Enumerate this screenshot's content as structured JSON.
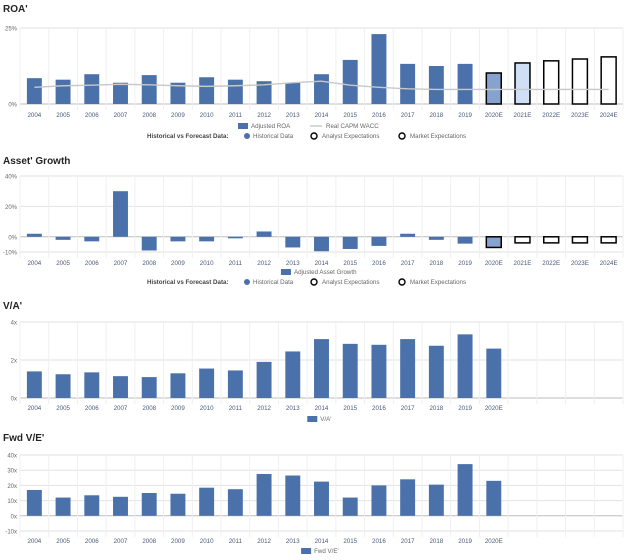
{
  "colors": {
    "historical": "#4a71aa",
    "analyst_fill": "#cfe0f6",
    "wacc_line": "#c8c8c8",
    "grid": "#e2e2e2",
    "text": "#666666"
  },
  "forecast_legend": {
    "heading": "Historical vs Forecast Data:",
    "historical": "Historical Data",
    "analyst": "Analyst Expectations",
    "market": "Market Expectations"
  },
  "chart_data": [
    {
      "type": "bar",
      "title": "ROA'",
      "categories": [
        "2004",
        "2005",
        "2006",
        "2007",
        "2008",
        "2009",
        "2010",
        "2011",
        "2012",
        "2013",
        "2014",
        "2015",
        "2016",
        "2017",
        "2018",
        "2019",
        "2020E",
        "2021E",
        "2022E",
        "2023E",
        "2024E"
      ],
      "series": [
        {
          "name": "Adjusted ROA",
          "values": [
            8.5,
            8,
            9.8,
            7,
            9.5,
            7,
            8.8,
            8,
            7.5,
            7,
            9.8,
            14.5,
            23,
            13.2,
            12.5,
            13.2,
            10.2,
            13.5,
            14.2,
            14.8,
            15.5
          ]
        },
        {
          "name": "Real CAPM WACC",
          "values": [
            5.5,
            6,
            6.2,
            6.5,
            6.3,
            6,
            5.8,
            6,
            6.3,
            7,
            7.5,
            6.2,
            5.5,
            5,
            4.8,
            4.8,
            4.8,
            4.8,
            4.8,
            4.8,
            4.8
          ]
        }
      ],
      "bar_styles": [
        "historical",
        "historical",
        "historical",
        "historical",
        "historical",
        "historical",
        "historical",
        "historical",
        "historical",
        "historical",
        "historical",
        "historical",
        "historical",
        "historical",
        "historical",
        "historical",
        "analyst_dark",
        "analyst_light",
        "market",
        "market",
        "market"
      ],
      "yticks": [
        "0%",
        "25%"
      ],
      "ylim": [
        0,
        25
      ],
      "grid": true
    },
    {
      "type": "bar",
      "title": "Asset' Growth",
      "categories": [
        "2004",
        "2005",
        "2006",
        "2007",
        "2008",
        "2009",
        "2010",
        "2011",
        "2012",
        "2013",
        "2014",
        "2015",
        "2016",
        "2017",
        "2018",
        "2019",
        "2020E",
        "2021E",
        "2022E",
        "2023E",
        "2024E"
      ],
      "series": [
        {
          "name": "Adjusted Asset Growth",
          "values": [
            2,
            -2,
            -3,
            30,
            -9,
            -3,
            -3,
            -1,
            3.5,
            -7,
            -9.5,
            -8,
            -6,
            2,
            -2,
            -4.5,
            -7,
            -4,
            -4,
            -4,
            -4
          ]
        }
      ],
      "bar_styles": [
        "historical",
        "historical",
        "historical",
        "historical",
        "historical",
        "historical",
        "historical",
        "historical",
        "historical",
        "historical",
        "historical",
        "historical",
        "historical",
        "historical",
        "historical",
        "historical",
        "analyst_dark",
        "market",
        "market",
        "market",
        "market"
      ],
      "yticks": [
        "-10%",
        "0%",
        "20%",
        "40%"
      ],
      "ylim": [
        -10,
        40
      ],
      "grid": true
    },
    {
      "type": "bar",
      "title": "V/A'",
      "categories": [
        "2004",
        "2005",
        "2006",
        "2007",
        "2008",
        "2009",
        "2010",
        "2011",
        "2012",
        "2013",
        "2014",
        "2015",
        "2016",
        "2017",
        "2018",
        "2019",
        "2020E"
      ],
      "series": [
        {
          "name": "V/A'",
          "values": [
            1.4,
            1.25,
            1.35,
            1.15,
            1.1,
            1.3,
            1.55,
            1.45,
            1.9,
            2.45,
            3.1,
            2.85,
            2.8,
            3.1,
            2.75,
            3.35,
            2.6
          ]
        }
      ],
      "yticks": [
        "0x",
        "2x",
        "4x"
      ],
      "ylim": [
        0,
        4
      ],
      "grid": true
    },
    {
      "type": "bar",
      "title": "Fwd V/E'",
      "categories": [
        "2004",
        "2005",
        "2006",
        "2007",
        "2008",
        "2009",
        "2010",
        "2011",
        "2012",
        "2013",
        "2014",
        "2015",
        "2016",
        "2017",
        "2018",
        "2019",
        "2020E"
      ],
      "series": [
        {
          "name": "Fwd V/E'",
          "values": [
            17,
            12,
            13.5,
            12.5,
            15,
            14.5,
            18.5,
            17.5,
            27.5,
            26.5,
            22.5,
            12,
            20,
            24,
            20.5,
            34,
            23
          ]
        }
      ],
      "yticks": [
        "-10x",
        "0x",
        "10x",
        "20x",
        "30x",
        "40x"
      ],
      "ylim": [
        -10,
        40
      ],
      "grid": true
    }
  ]
}
